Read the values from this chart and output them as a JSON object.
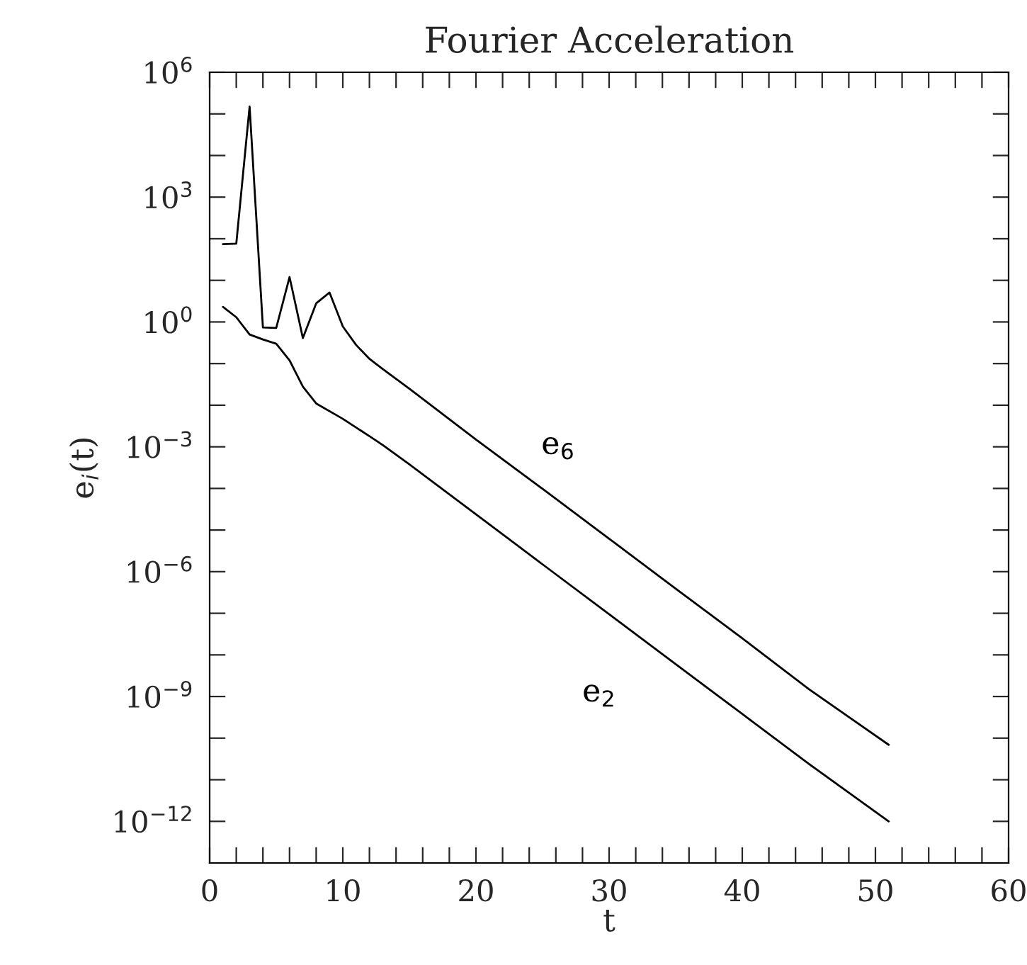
{
  "chart_data": {
    "type": "line",
    "title": "Fourier Acceleration",
    "xlabel": "t",
    "ylabel": "e$_{i}$(t)",
    "log": "y",
    "grid": false,
    "marker": "none",
    "line_style": "solid",
    "xlim": [
      0,
      60
    ],
    "xticks": [
      0,
      {
        "value": 2,
        "label": null
      },
      {
        "value": 4,
        "label": null
      },
      {
        "value": 6,
        "label": null
      },
      {
        "value": 8,
        "label": null
      },
      10,
      {
        "value": 12,
        "label": null
      },
      {
        "value": 14,
        "label": null
      },
      {
        "value": 16,
        "label": null
      },
      {
        "value": 18,
        "label": null
      },
      20,
      {
        "value": 22,
        "label": null
      },
      {
        "value": 24,
        "label": null
      },
      {
        "value": 26,
        "label": null
      },
      {
        "value": 28,
        "label": null
      },
      30,
      {
        "value": 32,
        "label": null
      },
      {
        "value": 34,
        "label": null
      },
      {
        "value": 36,
        "label": null
      },
      {
        "value": 38,
        "label": null
      },
      40,
      {
        "value": 42,
        "label": null
      },
      {
        "value": 44,
        "label": null
      },
      {
        "value": 46,
        "label": null
      },
      {
        "value": 48,
        "label": null
      },
      50,
      {
        "value": 52,
        "label": null
      },
      {
        "value": 54,
        "label": null
      },
      {
        "value": 56,
        "label": null
      },
      {
        "value": 58,
        "label": null
      },
      60
    ],
    "ylim": [
      1e-13,
      1000000.0
    ],
    "yticks": [
      {
        "value": 1e-12,
        "label": "10$^{−12}$"
      },
      {
        "value": 1e-11,
        "label": null
      },
      {
        "value": 1e-10,
        "label": null
      },
      {
        "value": 1e-09,
        "label": "10$^{−9}$"
      },
      {
        "value": 1e-08,
        "label": null
      },
      {
        "value": 1e-07,
        "label": null
      },
      {
        "value": 1e-06,
        "label": "10$^{−6}$"
      },
      {
        "value": 1e-05,
        "label": null
      },
      {
        "value": 0.0001,
        "label": null
      },
      {
        "value": 0.001,
        "label": "10$^{−3}$"
      },
      {
        "value": 0.01,
        "label": null
      },
      {
        "value": 0.1,
        "label": null
      },
      {
        "value": 1,
        "label": "10$^{0}$"
      },
      {
        "value": 10,
        "label": null
      },
      {
        "value": 100,
        "label": null
      },
      {
        "value": 1000,
        "label": "10$^{3}$"
      },
      {
        "value": 10000.0,
        "label": null
      },
      {
        "value": 100000.0,
        "label": null
      },
      {
        "value": 1000000.0,
        "label": "10$^{6}$"
      }
    ],
    "series": [
      {
        "name": "e$_{6}$",
        "color": "#000000",
        "x": [
          1,
          2,
          3,
          4,
          5,
          6,
          7,
          8,
          9,
          10,
          11,
          12,
          13,
          15,
          20,
          25,
          30,
          35,
          40,
          45,
          51
        ],
        "values": [
          74,
          76,
          150000.0,
          0.74,
          0.72,
          12,
          0.41,
          2.8,
          5.1,
          0.78,
          0.28,
          0.13,
          0.074,
          0.025,
          0.0015,
          9.8e-05,
          6.2e-06,
          3.9e-07,
          2.5e-08,
          1.5e-09,
          6.9e-11
        ]
      },
      {
        "name": "e$_{2}$",
        "color": "#000000",
        "x": [
          1,
          2,
          3,
          4,
          5,
          6,
          7,
          8,
          10,
          12,
          13,
          15,
          20,
          25,
          30,
          35,
          40,
          45,
          51
        ],
        "values": [
          2.3,
          1.3,
          0.5,
          0.38,
          0.3,
          0.12,
          0.028,
          0.011,
          0.0047,
          0.0018,
          0.0011,
          0.00038,
          2.4e-05,
          1.5e-06,
          9.5e-08,
          6e-09,
          3.8e-10,
          2.4e-11,
          1e-12
        ]
      }
    ]
  }
}
